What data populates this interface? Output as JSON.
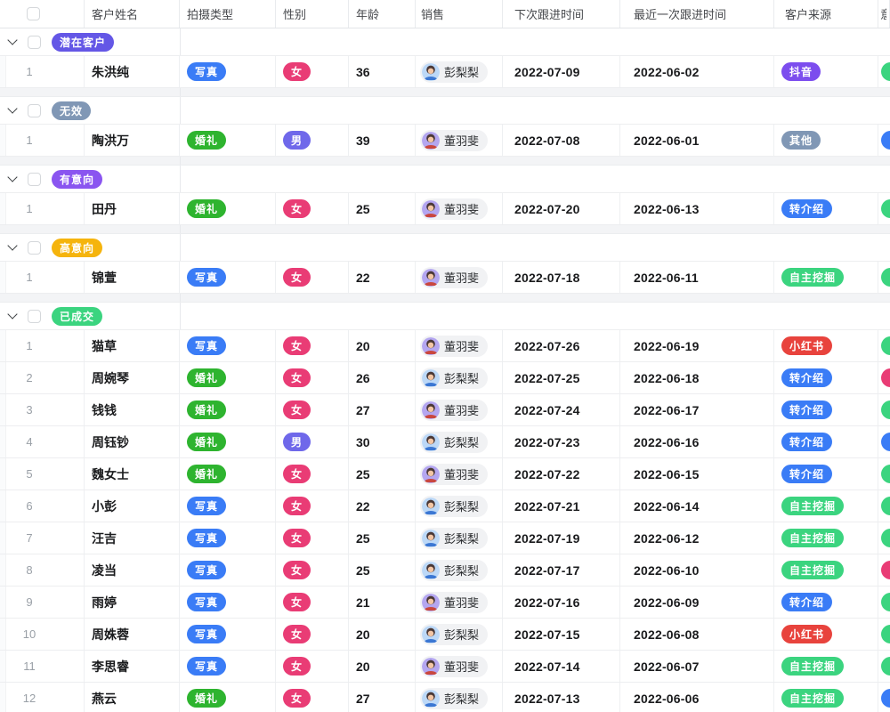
{
  "columns": {
    "name": "客户姓名",
    "shoot_type": "拍摄类型",
    "gender": "性别",
    "age": "年龄",
    "sales": "销售",
    "next_followup": "下次跟进时间",
    "last_followup": "最近一次跟进时间",
    "source": "客户来源",
    "partial_last": "意"
  },
  "palette": {
    "blue": "#3a7cf6",
    "green": "#2eb42f",
    "mint": "#3bd47f",
    "pink": "#e93c75",
    "indigo": "#6f68ea",
    "violet": "#8a55f0",
    "iris": "#6457e6",
    "slate": "#8097b5",
    "amber": "#f5b40d",
    "red": "#e8433d",
    "purple": "#7c4dee"
  },
  "sales_people": [
    {
      "name": "董羽斐",
      "avatar_bg": "#b4a6f0",
      "avatar_shirt": "#c9473f"
    },
    {
      "name": "彭梨梨",
      "avatar_bg": "#bcd8f7",
      "avatar_shirt": "#3b77d3"
    }
  ],
  "groups": [
    {
      "label": "潜在客户",
      "color": "iris",
      "rows": [
        {
          "num": "1",
          "name": "朱洪纯",
          "type": {
            "label": "写真",
            "color": "blue"
          },
          "gender": {
            "label": "女",
            "color": "pink"
          },
          "age": "36",
          "sales": "彭梨梨",
          "next": "2022-07-09",
          "last": "2022-06-02",
          "source": {
            "label": "抖音",
            "color": "purple"
          },
          "extra": "mint"
        }
      ]
    },
    {
      "label": "无效",
      "color": "slate",
      "rows": [
        {
          "num": "1",
          "name": "陶洪万",
          "type": {
            "label": "婚礼",
            "color": "green"
          },
          "gender": {
            "label": "男",
            "color": "indigo"
          },
          "age": "39",
          "sales": "董羽斐",
          "next": "2022-07-08",
          "last": "2022-06-01",
          "source": {
            "label": "其他",
            "color": "slate"
          },
          "extra": "blue"
        }
      ]
    },
    {
      "label": "有意向",
      "color": "violet",
      "rows": [
        {
          "num": "1",
          "name": "田丹",
          "type": {
            "label": "婚礼",
            "color": "green"
          },
          "gender": {
            "label": "女",
            "color": "pink"
          },
          "age": "25",
          "sales": "董羽斐",
          "next": "2022-07-20",
          "last": "2022-06-13",
          "source": {
            "label": "转介绍",
            "color": "blue"
          },
          "extra": "mint"
        }
      ]
    },
    {
      "label": "高意向",
      "color": "amber",
      "rows": [
        {
          "num": "1",
          "name": "锦萱",
          "type": {
            "label": "写真",
            "color": "blue"
          },
          "gender": {
            "label": "女",
            "color": "pink"
          },
          "age": "22",
          "sales": "董羽斐",
          "next": "2022-07-18",
          "last": "2022-06-11",
          "source": {
            "label": "自主挖掘",
            "color": "mint"
          },
          "extra": "mint"
        }
      ]
    },
    {
      "label": "已成交",
      "color": "mint",
      "rows": [
        {
          "num": "1",
          "name": "猫草",
          "type": {
            "label": "写真",
            "color": "blue"
          },
          "gender": {
            "label": "女",
            "color": "pink"
          },
          "age": "20",
          "sales": "董羽斐",
          "next": "2022-07-26",
          "last": "2022-06-19",
          "source": {
            "label": "小红书",
            "color": "red"
          },
          "extra": "mint"
        },
        {
          "num": "2",
          "name": "周婉琴",
          "type": {
            "label": "婚礼",
            "color": "green"
          },
          "gender": {
            "label": "女",
            "color": "pink"
          },
          "age": "26",
          "sales": "彭梨梨",
          "next": "2022-07-25",
          "last": "2022-06-18",
          "source": {
            "label": "转介绍",
            "color": "blue"
          },
          "extra": "pink"
        },
        {
          "num": "3",
          "name": "钱钱",
          "type": {
            "label": "婚礼",
            "color": "green"
          },
          "gender": {
            "label": "女",
            "color": "pink"
          },
          "age": "27",
          "sales": "董羽斐",
          "next": "2022-07-24",
          "last": "2022-06-17",
          "source": {
            "label": "转介绍",
            "color": "blue"
          },
          "extra": "mint"
        },
        {
          "num": "4",
          "name": "周钰钞",
          "type": {
            "label": "婚礼",
            "color": "green"
          },
          "gender": {
            "label": "男",
            "color": "indigo"
          },
          "age": "30",
          "sales": "彭梨梨",
          "next": "2022-07-23",
          "last": "2022-06-16",
          "source": {
            "label": "转介绍",
            "color": "blue"
          },
          "extra": "blue"
        },
        {
          "num": "5",
          "name": "魏女士",
          "type": {
            "label": "婚礼",
            "color": "green"
          },
          "gender": {
            "label": "女",
            "color": "pink"
          },
          "age": "25",
          "sales": "董羽斐",
          "next": "2022-07-22",
          "last": "2022-06-15",
          "source": {
            "label": "转介绍",
            "color": "blue"
          },
          "extra": "mint"
        },
        {
          "num": "6",
          "name": "小彭",
          "type": {
            "label": "写真",
            "color": "blue"
          },
          "gender": {
            "label": "女",
            "color": "pink"
          },
          "age": "22",
          "sales": "彭梨梨",
          "next": "2022-07-21",
          "last": "2022-06-14",
          "source": {
            "label": "自主挖掘",
            "color": "mint"
          },
          "extra": "mint"
        },
        {
          "num": "7",
          "name": "汪吉",
          "type": {
            "label": "写真",
            "color": "blue"
          },
          "gender": {
            "label": "女",
            "color": "pink"
          },
          "age": "25",
          "sales": "彭梨梨",
          "next": "2022-07-19",
          "last": "2022-06-12",
          "source": {
            "label": "自主挖掘",
            "color": "mint"
          },
          "extra": "mint"
        },
        {
          "num": "8",
          "name": "凌当",
          "type": {
            "label": "写真",
            "color": "blue"
          },
          "gender": {
            "label": "女",
            "color": "pink"
          },
          "age": "25",
          "sales": "彭梨梨",
          "next": "2022-07-17",
          "last": "2022-06-10",
          "source": {
            "label": "自主挖掘",
            "color": "mint"
          },
          "extra": "pink"
        },
        {
          "num": "9",
          "name": "雨婷",
          "type": {
            "label": "写真",
            "color": "blue"
          },
          "gender": {
            "label": "女",
            "color": "pink"
          },
          "age": "21",
          "sales": "董羽斐",
          "next": "2022-07-16",
          "last": "2022-06-09",
          "source": {
            "label": "转介绍",
            "color": "blue"
          },
          "extra": "mint"
        },
        {
          "num": "10",
          "name": "周姝蓉",
          "type": {
            "label": "写真",
            "color": "blue"
          },
          "gender": {
            "label": "女",
            "color": "pink"
          },
          "age": "20",
          "sales": "彭梨梨",
          "next": "2022-07-15",
          "last": "2022-06-08",
          "source": {
            "label": "小红书",
            "color": "red"
          },
          "extra": "mint"
        },
        {
          "num": "11",
          "name": "李思睿",
          "type": {
            "label": "写真",
            "color": "blue"
          },
          "gender": {
            "label": "女",
            "color": "pink"
          },
          "age": "20",
          "sales": "董羽斐",
          "next": "2022-07-14",
          "last": "2022-06-07",
          "source": {
            "label": "自主挖掘",
            "color": "mint"
          },
          "extra": "mint"
        },
        {
          "num": "12",
          "name": "燕云",
          "type": {
            "label": "婚礼",
            "color": "green"
          },
          "gender": {
            "label": "女",
            "color": "pink"
          },
          "age": "27",
          "sales": "彭梨梨",
          "next": "2022-07-13",
          "last": "2022-06-06",
          "source": {
            "label": "自主挖掘",
            "color": "mint"
          },
          "extra": "blue"
        }
      ]
    }
  ]
}
